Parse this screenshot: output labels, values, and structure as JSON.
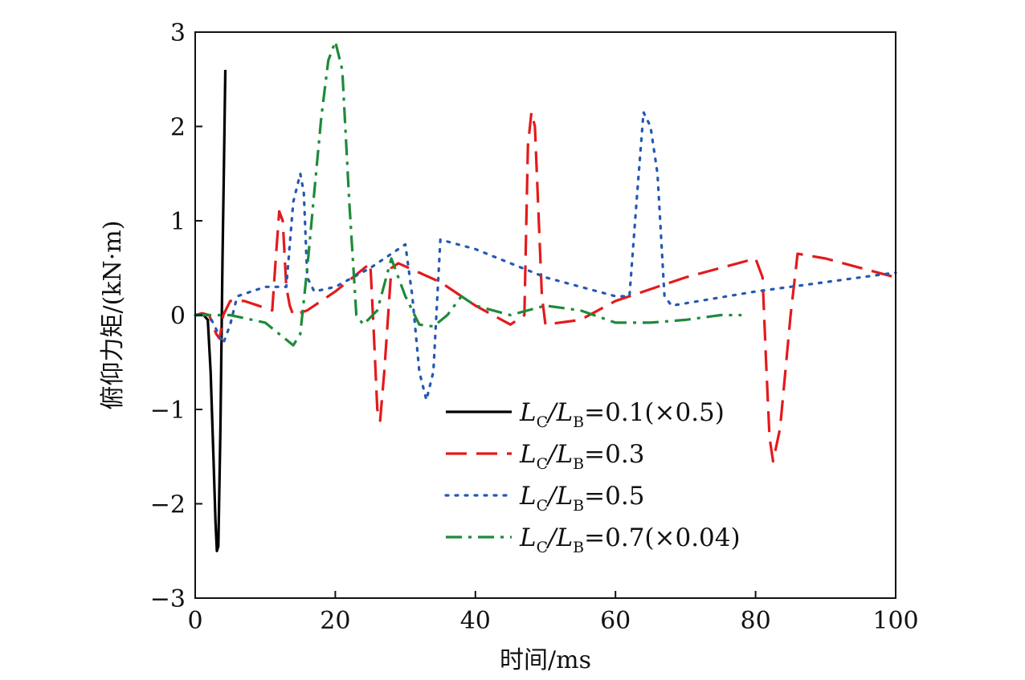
{
  "chart_data": {
    "type": "line",
    "xlabel": "时间/ms",
    "ylabel": "俯仰力矩/(kN·m)",
    "xlim": [
      0,
      100
    ],
    "ylim": [
      -3,
      3
    ],
    "xticks": [
      "0",
      "20",
      "40",
      "60",
      "80",
      "100"
    ],
    "yticks": [
      "3",
      "2",
      "1",
      "0",
      "−1",
      "−2",
      "−3"
    ],
    "grid": false,
    "legend_position": "lower-right",
    "series": [
      {
        "name": "LC/LB=0.1(×0.5)",
        "legend": {
          "main": "L",
          "sub1": "C",
          "mid": "/L",
          "sub2": "B",
          "tail": "=0.1(×0.5)"
        },
        "color": "#000000",
        "style": "solid",
        "points": [
          [
            0,
            0
          ],
          [
            0.5,
            0
          ],
          [
            1.2,
            0
          ],
          [
            1.8,
            -0.05
          ],
          [
            2.2,
            -0.6
          ],
          [
            2.6,
            -1.5
          ],
          [
            2.9,
            -2.2
          ],
          [
            3.1,
            -2.5
          ],
          [
            3.3,
            -2.45
          ],
          [
            3.6,
            -1.2
          ],
          [
            3.9,
            0.6
          ],
          [
            4.1,
            1.6
          ],
          [
            4.3,
            2.6
          ]
        ]
      },
      {
        "name": "LC/LB=0.3",
        "legend": {
          "main": "L",
          "sub1": "C",
          "mid": "/L",
          "sub2": "B",
          "tail": "=0.3"
        },
        "color": "#e31a1c",
        "style": "dashed",
        "points": [
          [
            0,
            0
          ],
          [
            1,
            0.02
          ],
          [
            2,
            0
          ],
          [
            3,
            -0.2
          ],
          [
            3.5,
            -0.25
          ],
          [
            4,
            0
          ],
          [
            5,
            0.15
          ],
          [
            7,
            0.15
          ],
          [
            9,
            0.1
          ],
          [
            11,
            0.05
          ],
          [
            11.5,
            0.6
          ],
          [
            12,
            1.1
          ],
          [
            12.5,
            1.0
          ],
          [
            13,
            0.3
          ],
          [
            13.5,
            0.1
          ],
          [
            14,
            0
          ],
          [
            16,
            0.05
          ],
          [
            20,
            0.25
          ],
          [
            25,
            0.55
          ],
          [
            25.5,
            -0.2
          ],
          [
            26,
            -1.0
          ],
          [
            26.4,
            -1.12
          ],
          [
            27,
            -0.6
          ],
          [
            28,
            0.5
          ],
          [
            29,
            0.55
          ],
          [
            35,
            0.35
          ],
          [
            40,
            0.1
          ],
          [
            45,
            -0.1
          ],
          [
            47,
            0
          ],
          [
            47.5,
            1.8
          ],
          [
            48,
            2.15
          ],
          [
            48.5,
            2.0
          ],
          [
            49.5,
            0.2
          ],
          [
            50,
            -0.1
          ],
          [
            55,
            -0.05
          ],
          [
            60,
            0.15
          ],
          [
            70,
            0.4
          ],
          [
            80,
            0.6
          ],
          [
            81,
            0.4
          ],
          [
            81.5,
            -0.5
          ],
          [
            82,
            -1.3
          ],
          [
            82.5,
            -1.55
          ],
          [
            83.5,
            -1.2
          ],
          [
            85,
            0
          ],
          [
            86,
            0.65
          ],
          [
            90,
            0.6
          ],
          [
            95,
            0.5
          ],
          [
            100,
            0.4
          ]
        ]
      },
      {
        "name": "LC/LB=0.5",
        "legend": {
          "main": "L",
          "sub1": "C",
          "mid": "/L",
          "sub2": "B",
          "tail": "=0.5"
        },
        "color": "#2459b3",
        "style": "dotted",
        "points": [
          [
            0,
            0
          ],
          [
            2,
            0
          ],
          [
            4,
            -0.3
          ],
          [
            5,
            -0.1
          ],
          [
            6,
            0.2
          ],
          [
            10,
            0.3
          ],
          [
            13,
            0.3
          ],
          [
            14,
            1.2
          ],
          [
            15,
            1.5
          ],
          [
            15.5,
            1.3
          ],
          [
            16,
            0.4
          ],
          [
            17,
            0.25
          ],
          [
            20,
            0.3
          ],
          [
            25,
            0.5
          ],
          [
            30,
            0.75
          ],
          [
            31,
            0.2
          ],
          [
            32,
            -0.6
          ],
          [
            33,
            -0.9
          ],
          [
            34,
            -0.6
          ],
          [
            35,
            0.8
          ],
          [
            40,
            0.7
          ],
          [
            50,
            0.4
          ],
          [
            60,
            0.2
          ],
          [
            62,
            0.2
          ],
          [
            63,
            1.2
          ],
          [
            64,
            2.15
          ],
          [
            65,
            2.0
          ],
          [
            66,
            1.5
          ],
          [
            67,
            0.2
          ],
          [
            68,
            0.1
          ],
          [
            80,
            0.25
          ],
          [
            90,
            0.35
          ],
          [
            100,
            0.45
          ]
        ]
      },
      {
        "name": "LC/LB=0.7(×0.04)",
        "legend": {
          "main": "L",
          "sub1": "C",
          "mid": "/L",
          "sub2": "B",
          "tail": "=0.7(×0.04)"
        },
        "color": "#1e8a3a",
        "style": "dashdot",
        "points": [
          [
            0,
            0
          ],
          [
            5,
            0
          ],
          [
            10,
            -0.08
          ],
          [
            12,
            -0.2
          ],
          [
            14,
            -0.32
          ],
          [
            15,
            -0.2
          ],
          [
            16,
            0.5
          ],
          [
            17,
            1.3
          ],
          [
            18,
            2.1
          ],
          [
            19,
            2.7
          ],
          [
            20,
            2.9
          ],
          [
            21,
            2.6
          ],
          [
            22,
            1.2
          ],
          [
            23,
            0
          ],
          [
            24,
            -0.1
          ],
          [
            26,
            0.05
          ],
          [
            28,
            0.6
          ],
          [
            29,
            0.4
          ],
          [
            30,
            0.2
          ],
          [
            32,
            -0.1
          ],
          [
            34,
            -0.12
          ],
          [
            36,
            0
          ],
          [
            38,
            0.2
          ],
          [
            40,
            0.1
          ],
          [
            45,
            0
          ],
          [
            50,
            0.1
          ],
          [
            55,
            0.05
          ],
          [
            60,
            -0.08
          ],
          [
            65,
            -0.08
          ],
          [
            70,
            -0.05
          ],
          [
            75,
            0
          ],
          [
            78,
            0
          ]
        ]
      }
    ]
  }
}
